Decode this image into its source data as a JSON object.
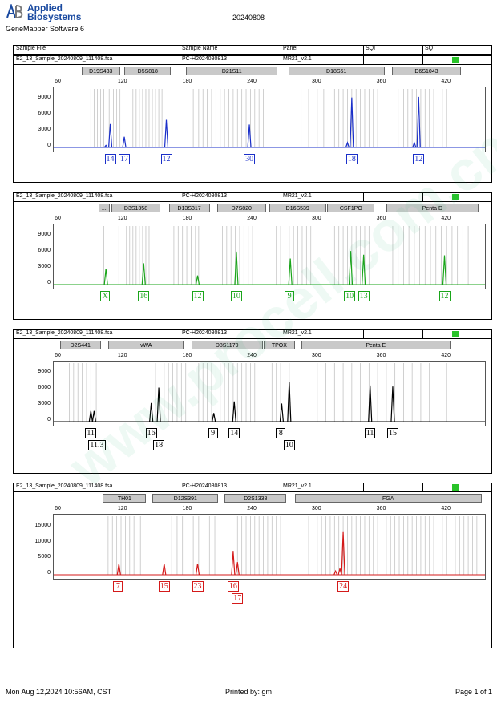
{
  "header": {
    "brand_line1": "Applied",
    "brand_line2": "Biosystems",
    "software": "GeneMapper Software 6",
    "report_date": "20240808",
    "columns": [
      "Sample File",
      "Sample Name",
      "Panel",
      "SQI",
      "SQ"
    ]
  },
  "footer": {
    "timestamp": "Mon Aug 12,2024 10:56AM, CST",
    "printed_by": "Printed by: gm",
    "page": "Page 1 of 1"
  },
  "watermark": "www.procell.com.cn",
  "scale_ticks": [
    "60",
    "120",
    "180",
    "240",
    "300",
    "360",
    "420"
  ],
  "colors": {
    "blue": "#1a2fc9",
    "green": "#1aa51a",
    "black": "#000000",
    "red": "#d41a1a",
    "quality": "#29c329",
    "marker_bg": "#c9c9c9"
  },
  "panels": [
    {
      "sample_file": "E2_13_Sample_20240809_111408.fsa",
      "sample_name": "PC-H2024080813",
      "panel": "MR21_v2.1",
      "dye_color": "#1a2fc9",
      "y_ticks": [
        "9000",
        "6000",
        "3000",
        "0"
      ],
      "y_max": 11000,
      "markers": [
        {
          "name": "D19S433",
          "start": 82,
          "end": 118
        },
        {
          "name": "D5S818",
          "start": 122,
          "end": 165
        },
        {
          "name": "D21S11",
          "start": 179,
          "end": 264
        },
        {
          "name": "D18S51",
          "start": 274,
          "end": 363
        },
        {
          "name": "D6S1043",
          "start": 370,
          "end": 434
        }
      ],
      "bins": [
        90,
        93,
        96,
        99,
        102,
        105,
        107,
        111,
        114,
        117,
        129,
        132,
        135,
        138,
        141,
        144,
        147,
        150,
        153,
        156,
        185,
        190,
        194,
        198,
        202,
        206,
        210,
        214,
        218,
        222,
        226,
        230,
        234,
        238,
        242,
        246,
        250,
        285,
        292,
        300,
        306,
        311,
        316,
        320,
        324,
        328,
        332,
        336,
        340,
        344,
        348,
        352,
        356,
        360,
        375,
        380,
        384,
        388,
        392,
        396,
        400,
        404,
        408,
        412,
        416,
        420,
        424
      ],
      "peaks": [
        {
          "size": 108,
          "height": 4400
        },
        {
          "size": 104,
          "height": 400
        },
        {
          "size": 121,
          "height": 2000
        },
        {
          "size": 160,
          "height": 5200
        },
        {
          "size": 237,
          "height": 4300
        },
        {
          "size": 332,
          "height": 9400
        },
        {
          "size": 328,
          "height": 900
        },
        {
          "size": 394,
          "height": 9500
        },
        {
          "size": 390,
          "height": 900
        }
      ],
      "alleles": [
        {
          "label": "14",
          "size": 108,
          "row": 0
        },
        {
          "label": "17",
          "size": 121,
          "row": 0
        },
        {
          "label": "12",
          "size": 160,
          "row": 0
        },
        {
          "label": "30",
          "size": 237,
          "row": 0
        },
        {
          "label": "18",
          "size": 332,
          "row": 0
        },
        {
          "label": "12",
          "size": 394,
          "row": 0
        }
      ]
    },
    {
      "sample_file": "E2_13_Sample_20240809_111408.fsa",
      "sample_name": "PC-H2024080813",
      "panel": "MR21_v2.1",
      "dye_color": "#1aa51a",
      "y_ticks": [
        "9000",
        "6000",
        "3000",
        "0"
      ],
      "y_max": 11000,
      "markers": [
        {
          "name": "...",
          "start": 98,
          "end": 108
        },
        {
          "name": "D3S1358",
          "start": 110,
          "end": 155
        },
        {
          "name": "D13S317",
          "start": 163,
          "end": 201
        },
        {
          "name": "D7S820",
          "start": 208,
          "end": 253
        },
        {
          "name": "D16S539",
          "start": 256,
          "end": 309
        },
        {
          "name": "CSF1PO",
          "start": 310,
          "end": 354
        },
        {
          "name": "Penta D",
          "start": 365,
          "end": 450
        }
      ],
      "bins": [
        102,
        116,
        123,
        126,
        129,
        132,
        135,
        138,
        141,
        144,
        167,
        171,
        175,
        179,
        183,
        187,
        190,
        212,
        216,
        220,
        224,
        228,
        232,
        236,
        240,
        262,
        266,
        270,
        274,
        278,
        282,
        286,
        290,
        294,
        316,
        320,
        324,
        328,
        332,
        336,
        340,
        344,
        348,
        370,
        375,
        380,
        385,
        390,
        395,
        400,
        405,
        410,
        415,
        420,
        425,
        430,
        435,
        440
      ],
      "peaks": [
        {
          "size": 104,
          "height": 3000
        },
        {
          "size": 139,
          "height": 4000
        },
        {
          "size": 189,
          "height": 1700
        },
        {
          "size": 225,
          "height": 6200
        },
        {
          "size": 275,
          "height": 4900
        },
        {
          "size": 331,
          "height": 6300
        },
        {
          "size": 343,
          "height": 5600
        },
        {
          "size": 418,
          "height": 5500
        }
      ],
      "alleles": [
        {
          "label": "X",
          "size": 104,
          "row": 0
        },
        {
          "label": "16",
          "size": 139,
          "row": 0
        },
        {
          "label": "12",
          "size": 189,
          "row": 0
        },
        {
          "label": "10",
          "size": 225,
          "row": 0
        },
        {
          "label": "9",
          "size": 275,
          "row": 0
        },
        {
          "label": "10",
          "size": 330,
          "row": 0
        },
        {
          "label": "13",
          "size": 343,
          "row": 0
        },
        {
          "label": "12",
          "size": 418,
          "row": 0
        }
      ]
    },
    {
      "sample_file": "E2_13_Sample_20240809_111408.fsa",
      "sample_name": "PC-H2024080813",
      "panel": "MR21_v2.1",
      "dye_color": "#000000",
      "y_ticks": [
        "9000",
        "6000",
        "3000",
        "0"
      ],
      "y_max": 11000,
      "markers": [
        {
          "name": "D2S441",
          "start": 62,
          "end": 100
        },
        {
          "name": "vWA",
          "start": 107,
          "end": 177
        },
        {
          "name": "D8S1179",
          "start": 184,
          "end": 250
        },
        {
          "name": "TPOX",
          "start": 251,
          "end": 280
        },
        {
          "name": "Penta E",
          "start": 286,
          "end": 424
        }
      ],
      "bins": [
        70,
        74,
        78,
        82,
        86,
        90,
        95,
        150,
        154,
        158,
        162,
        166,
        170,
        174,
        178,
        190,
        194,
        198,
        202,
        206,
        210,
        214,
        218,
        222,
        226,
        230,
        234,
        238,
        242,
        258,
        262,
        266,
        270,
        274,
        300,
        308,
        316,
        324,
        332,
        340,
        348,
        356,
        364,
        372,
        380,
        388,
        396,
        404,
        412,
        420
      ],
      "peaks": [
        {
          "size": 90,
          "height": 2000
        },
        {
          "size": 93,
          "height": 2000
        },
        {
          "size": 146,
          "height": 3500
        },
        {
          "size": 153,
          "height": 6400
        },
        {
          "size": 204,
          "height": 1600
        },
        {
          "size": 223,
          "height": 3800
        },
        {
          "size": 267,
          "height": 3400
        },
        {
          "size": 274,
          "height": 7500
        },
        {
          "size": 349,
          "height": 6800
        },
        {
          "size": 370,
          "height": 6600
        }
      ],
      "alleles": [
        {
          "label": "11",
          "size": 90,
          "row": 0
        },
        {
          "label": "11.3",
          "size": 93,
          "row": 1
        },
        {
          "label": "16",
          "size": 146,
          "row": 0
        },
        {
          "label": "18",
          "size": 153,
          "row": 1
        },
        {
          "label": "9",
          "size": 204,
          "row": 0
        },
        {
          "label": "14",
          "size": 223,
          "row": 0
        },
        {
          "label": "8",
          "size": 267,
          "row": 0
        },
        {
          "label": "10",
          "size": 274,
          "row": 1
        },
        {
          "label": "11",
          "size": 349,
          "row": 0
        },
        {
          "label": "15",
          "size": 370,
          "row": 0
        }
      ]
    },
    {
      "sample_file": "E2_13_Sample_20240809_111408.fsa",
      "sample_name": "PC-H2024080813",
      "panel": "MR21_v2.1",
      "dye_color": "#d41a1a",
      "y_ticks": [
        "15000",
        "10000",
        "5000",
        "0"
      ],
      "y_max": 18500,
      "markers": [
        {
          "name": "TH01",
          "start": 102,
          "end": 142
        },
        {
          "name": "D12S391",
          "start": 148,
          "end": 209
        },
        {
          "name": "D2S1338",
          "start": 215,
          "end": 272
        },
        {
          "name": "FGA",
          "start": 280,
          "end": 453
        }
      ],
      "bins": [
        106,
        110,
        114,
        118,
        122,
        126,
        130,
        136,
        165,
        170,
        175,
        180,
        185,
        190,
        195,
        200,
        205,
        226,
        230,
        234,
        238,
        242,
        246,
        250,
        254,
        258,
        262,
        266,
        270,
        292,
        296,
        300,
        304,
        308,
        312,
        316,
        320,
        324,
        328,
        332,
        336,
        340,
        344,
        348,
        352,
        356,
        360,
        364,
        368,
        372,
        376,
        380,
        384,
        388,
        392,
        396,
        400,
        404,
        408,
        412,
        416,
        420,
        424,
        428,
        432,
        436,
        440,
        444,
        448
      ],
      "peaks": [
        {
          "size": 116,
          "height": 3400
        },
        {
          "size": 158,
          "height": 3500
        },
        {
          "size": 189,
          "height": 3500
        },
        {
          "size": 222,
          "height": 7300
        },
        {
          "size": 226,
          "height": 4000
        },
        {
          "size": 317,
          "height": 1200
        },
        {
          "size": 321,
          "height": 2000
        },
        {
          "size": 324,
          "height": 13500
        }
      ],
      "alleles": [
        {
          "label": "7",
          "size": 116,
          "row": 0
        },
        {
          "label": "15",
          "size": 158,
          "row": 0
        },
        {
          "label": "23",
          "size": 189,
          "row": 0
        },
        {
          "label": "16",
          "size": 222,
          "row": 0
        },
        {
          "label": "17",
          "size": 226,
          "row": 1
        },
        {
          "label": "24",
          "size": 324,
          "row": 0
        }
      ]
    }
  ]
}
